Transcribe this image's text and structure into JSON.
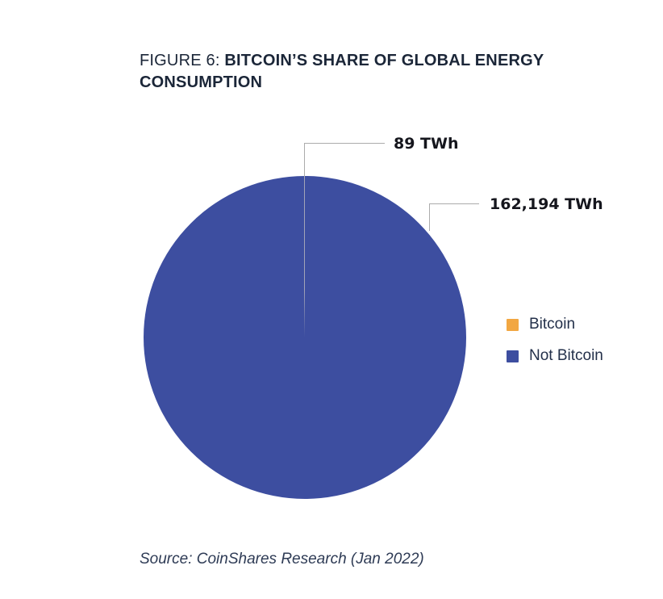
{
  "figure": {
    "title": {
      "prefix": "FIGURE 6: ",
      "main_line1": "BITCOIN’S SHARE OF GLOBAL ENERGY",
      "main_line2": "CONSUMPTION"
    },
    "source": "Source: CoinShares Research (Jan 2022)"
  },
  "chart_data": {
    "type": "pie",
    "title": "FIGURE 6: BITCOIN’S SHARE OF GLOBAL ENERGY CONSUMPTION",
    "unit": "TWh",
    "slices": [
      {
        "label": "Bitcoin",
        "value": 89,
        "callout": "89 TWh",
        "color": "#f2a742"
      },
      {
        "label": "Not Bitcoin",
        "value": 162194,
        "callout": "162,194 TWh",
        "color": "#3d4ea0"
      }
    ],
    "legend_position": "right",
    "source": "Source: CoinShares Research (Jan 2022)",
    "colors": {
      "leader_line": "#ababab",
      "title_text": "#1b2638",
      "callout_text": "#15161d"
    }
  }
}
